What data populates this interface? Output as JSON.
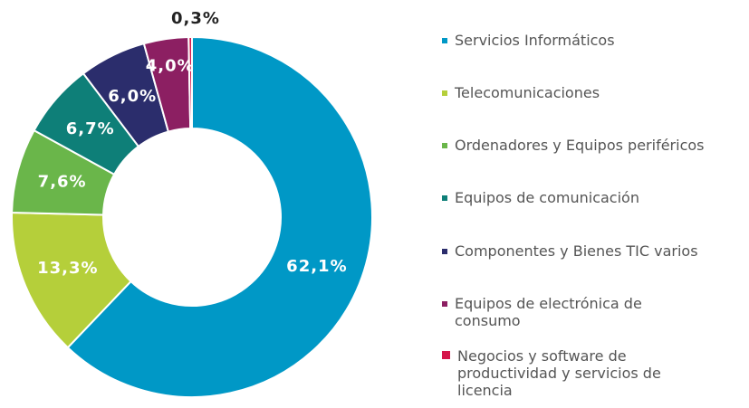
{
  "chart_data": {
    "type": "donut",
    "categories": [
      "Servicios Informáticos",
      "Telecomunicaciones",
      "Ordenadores y Equipos periféricos",
      "Equipos de comunicación",
      "Componentes y Bienes TIC varios",
      "Equipos de electrónica de consumo",
      "Negocios y software de productividad y servicios de licencia"
    ],
    "values": [
      62.1,
      13.3,
      7.6,
      6.7,
      6.0,
      4.0,
      0.3
    ],
    "value_labels": [
      "62,1%",
      "13,3%",
      "7,6%",
      "6,7%",
      "6,0%",
      "4,0%",
      "0,3%"
    ],
    "colors": [
      "#0098c6",
      "#b5cf3a",
      "#6ab64a",
      "#0e7f78",
      "#2b2d6c",
      "#8c1f62",
      "#d5164b"
    ]
  }
}
